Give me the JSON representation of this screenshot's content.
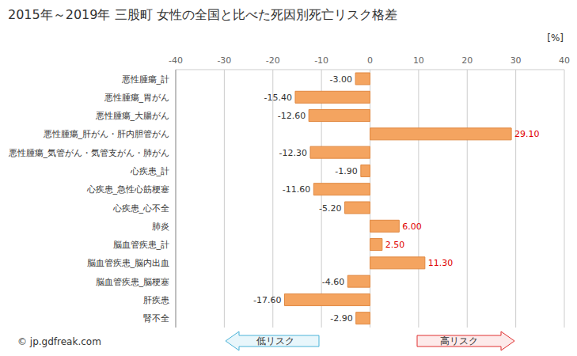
{
  "chart_data": {
    "type": "bar",
    "orientation": "horizontal",
    "title": "2015年～2019年 三股町 女性の全国と比べた死因別死亡リスク格差",
    "x_label": "[%]",
    "categories": [
      "悪性腫瘍_計",
      "悪性腫瘍_胃がん",
      "悪性腫瘍_大腸がん",
      "悪性腫瘍_肝がん・肝内胆管がん",
      "悪性腫瘍_気管がん・気管支がん・肺がん",
      "心疾患_計",
      "心疾患_急性心筋梗塞",
      "心疾患_心不全",
      "肺炎",
      "脳血管疾患_計",
      "脳血管疾患_脳内出血",
      "脳血管疾患_脳梗塞",
      "肝疾患",
      "腎不全"
    ],
    "values": [
      -3.0,
      -15.4,
      -12.6,
      29.1,
      -12.3,
      -1.9,
      -11.6,
      -5.2,
      6.0,
      2.5,
      11.3,
      -4.6,
      -17.6,
      -2.9
    ],
    "value_labels": [
      "-3.00",
      "-15.40",
      "-12.60",
      "29.10",
      "-12.30",
      "-1.90",
      "-11.60",
      "-5.20",
      "6.00",
      "2.50",
      "11.30",
      "-4.60",
      "-17.60",
      "-2.90"
    ],
    "data_labels": true,
    "color": "#f4a460",
    "xlim": [
      -40,
      40
    ],
    "xticks": [
      -40,
      -30,
      -20,
      -10,
      0,
      10,
      20,
      30,
      40
    ],
    "grid": true,
    "annotations": [
      "低リスク",
      "高リスク",
      "© jp.gdfreak.com"
    ]
  }
}
